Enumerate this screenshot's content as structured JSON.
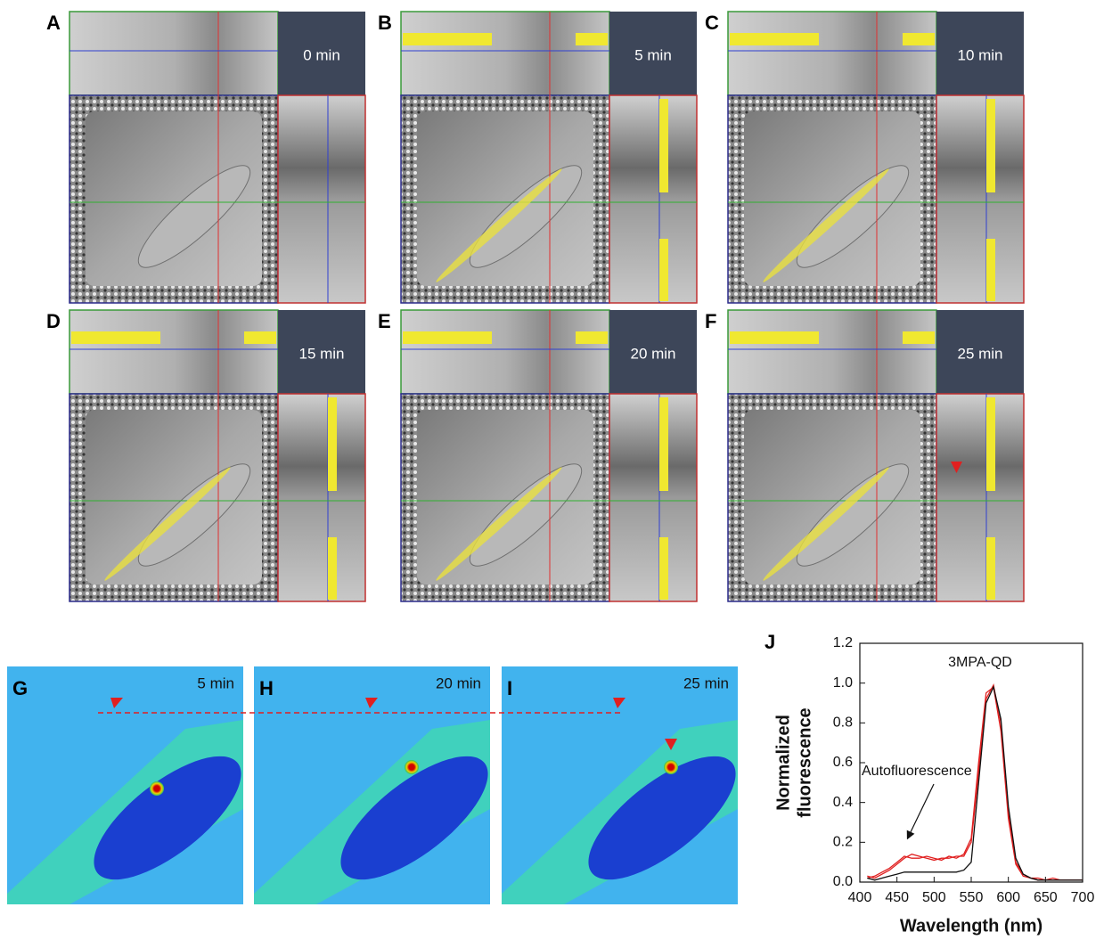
{
  "panels": [
    {
      "label": "A",
      "time": "0 min"
    },
    {
      "label": "B",
      "time": "5 min"
    },
    {
      "label": "C",
      "time": "10 min"
    },
    {
      "label": "D",
      "time": "15 min"
    },
    {
      "label": "E",
      "time": "20 min"
    },
    {
      "label": "F",
      "time": "25 min"
    }
  ],
  "heatmap_panels": [
    {
      "label": "G",
      "time": "5 min"
    },
    {
      "label": "H",
      "time": "20 min"
    },
    {
      "label": "I",
      "time": "25 min"
    }
  ],
  "chart_data": {
    "type": "line",
    "panel_label": "J",
    "xlabel": "Wavelength (nm)",
    "ylabel": [
      "Normalized",
      "fluorescence"
    ],
    "annotations": [
      "3MPA-QD",
      "Autofluorescence"
    ],
    "x": [
      410,
      420,
      430,
      440,
      450,
      460,
      470,
      480,
      490,
      500,
      510,
      520,
      530,
      540,
      550,
      560,
      570,
      580,
      590,
      600,
      610,
      620,
      630,
      640,
      650,
      660,
      670,
      680,
      690,
      700
    ],
    "series": [
      {
        "color": "#e02020",
        "values": [
          0.03,
          0.02,
          0.04,
          0.06,
          0.09,
          0.12,
          0.14,
          0.13,
          0.12,
          0.11,
          0.12,
          0.12,
          0.13,
          0.13,
          0.2,
          0.55,
          0.92,
          0.99,
          0.8,
          0.35,
          0.1,
          0.04,
          0.02,
          0.02,
          0.01,
          0.01,
          0.01,
          0.01,
          0.01,
          0.01
        ]
      },
      {
        "color": "#e02020",
        "values": [
          0.02,
          0.03,
          0.05,
          0.07,
          0.1,
          0.13,
          0.12,
          0.12,
          0.13,
          0.12,
          0.11,
          0.13,
          0.12,
          0.14,
          0.22,
          0.6,
          0.95,
          0.98,
          0.76,
          0.32,
          0.09,
          0.03,
          0.02,
          0.01,
          0.01,
          0.02,
          0.01,
          0.01,
          0.01,
          0.01
        ]
      },
      {
        "color": "#111111",
        "values": [
          0.02,
          0.01,
          0.02,
          0.03,
          0.04,
          0.05,
          0.05,
          0.05,
          0.05,
          0.05,
          0.05,
          0.05,
          0.05,
          0.06,
          0.1,
          0.5,
          0.9,
          0.98,
          0.82,
          0.38,
          0.12,
          0.04,
          0.02,
          0.01,
          0.01,
          0.01,
          0.01,
          0.01,
          0.01,
          0.01
        ]
      }
    ],
    "xlim": [
      400,
      700
    ],
    "xticks": [
      400,
      450,
      500,
      550,
      600,
      650,
      700
    ],
    "ylim": [
      0,
      1.2
    ],
    "yticks": [
      {
        "value": 0,
        "label": "0.0"
      },
      0.2,
      0.4,
      0.6,
      0.8,
      {
        "value": 1,
        "label": "1.0"
      },
      1.2
    ]
  }
}
